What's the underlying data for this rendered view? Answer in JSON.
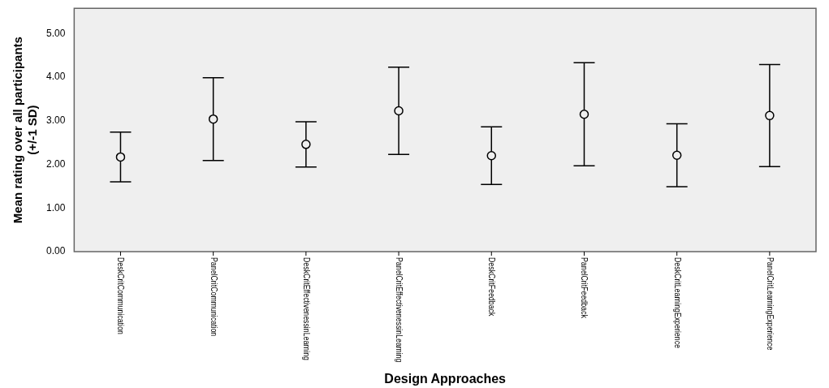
{
  "chart_data": {
    "type": "scatter",
    "xlabel": "Design Approaches",
    "ylabel": "Mean rating over all participants\n(+/-1 SD)",
    "categories": [
      "DeskCritCommunication",
      "PanelCritCommunication",
      "DeskCritEffectivenessinLearning",
      "PanelCritEffectivenessinLearning",
      "DeskCritFeedback",
      "PanelCritFeedback",
      "DeskCritLearningExperience",
      "PanelCritLearningExperience"
    ],
    "values": [
      2.17,
      3.04,
      2.46,
      3.23,
      2.2,
      3.15,
      2.21,
      3.12
    ],
    "errors": [
      0.57,
      0.95,
      0.52,
      1.0,
      0.66,
      1.18,
      0.72,
      1.17
    ],
    "color": "#000000",
    "marker": "circle",
    "ylim": [
      0,
      5.58
    ],
    "yticks": [
      {
        "value": 0,
        "label": "0.00"
      },
      {
        "value": 1,
        "label": "1.00"
      },
      {
        "value": 2,
        "label": "2.00"
      },
      {
        "value": 3,
        "label": "3.00"
      },
      {
        "value": 4,
        "label": "4.00"
      },
      {
        "value": 5,
        "label": "5.00"
      }
    ],
    "grid": false,
    "legend": false
  }
}
